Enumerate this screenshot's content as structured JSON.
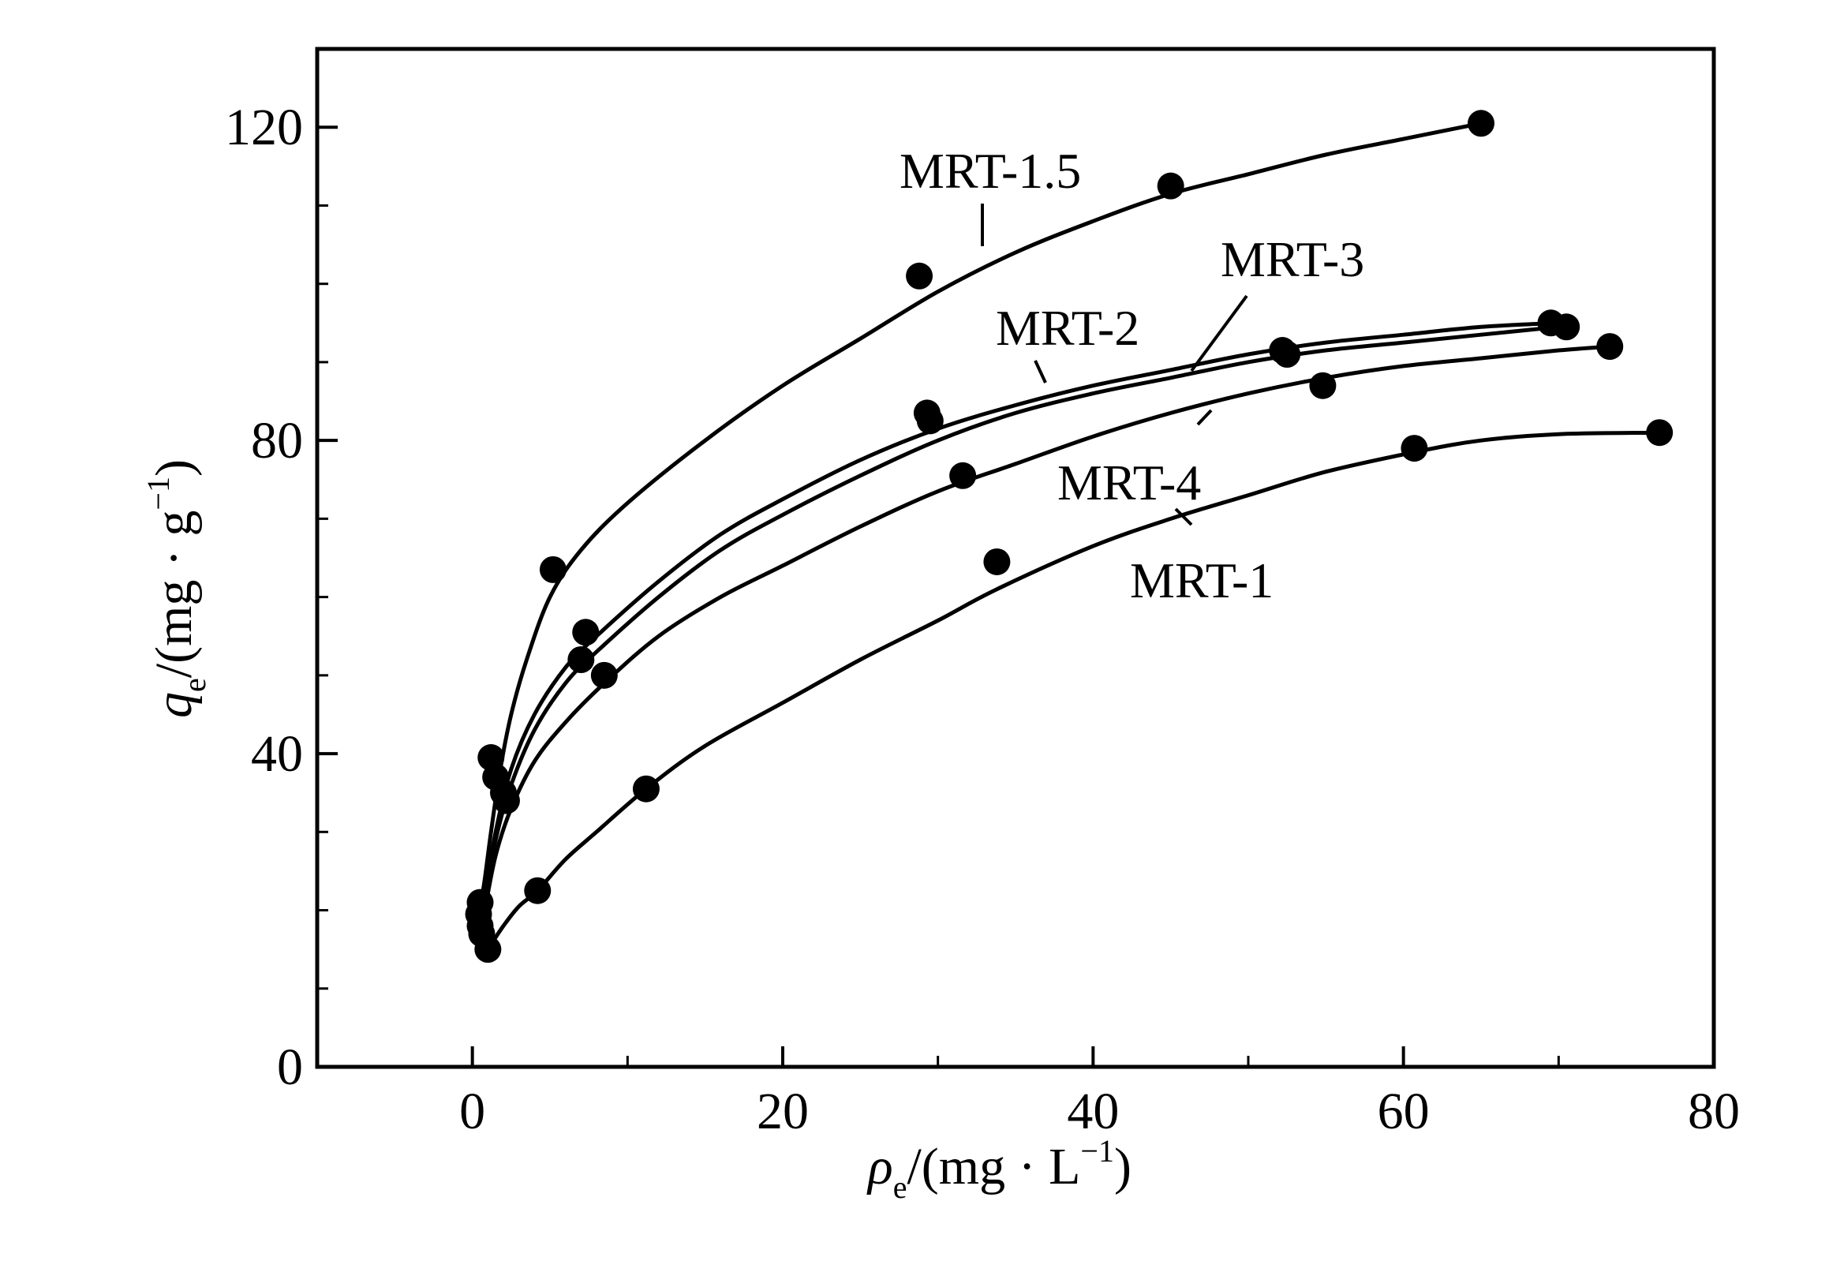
{
  "chart_data": {
    "type": "scatter",
    "xlabel": {
      "symbol": "ρ",
      "sub": "e",
      "unit_prefix": "/(mg · L",
      "unit_sup": "−1",
      "unit_suffix": ")"
    },
    "ylabel": {
      "symbol": "q",
      "sub": "e",
      "unit_prefix": "/(mg · g",
      "unit_sup": "−1",
      "unit_suffix": ")"
    },
    "xlim": [
      -10,
      80
    ],
    "ylim": [
      0,
      130
    ],
    "x_ticks": [
      0,
      20,
      40,
      60,
      80
    ],
    "x_tick_labels": [
      "0",
      "20",
      "40",
      "60",
      "80"
    ],
    "x_minor_ticks": [
      10,
      30,
      50,
      70
    ],
    "y_ticks": [
      0,
      40,
      80,
      120
    ],
    "y_tick_labels": [
      "0",
      "40",
      "80",
      "120"
    ],
    "y_minor_ticks": [
      10,
      20,
      30,
      50,
      60,
      70,
      90,
      100,
      110
    ],
    "grid": false,
    "series": [
      {
        "name": "MRT-1.5",
        "points": [
          [
            0.5,
            21
          ],
          [
            1.2,
            39.5
          ],
          [
            5.2,
            63.5
          ],
          [
            28.8,
            101
          ],
          [
            45,
            112.5
          ],
          [
            65,
            120.5
          ]
        ],
        "curve": [
          [
            0.4,
            19
          ],
          [
            0.8,
            24
          ],
          [
            1.2,
            30
          ],
          [
            1.8,
            38
          ],
          [
            2.5,
            45
          ],
          [
            3.5,
            52
          ],
          [
            5,
            60
          ],
          [
            7,
            66
          ],
          [
            10,
            72
          ],
          [
            15,
            80
          ],
          [
            20,
            87
          ],
          [
            25,
            93
          ],
          [
            30,
            99
          ],
          [
            35,
            104
          ],
          [
            40,
            108
          ],
          [
            45,
            111.5
          ],
          [
            50,
            114
          ],
          [
            55,
            116.5
          ],
          [
            60,
            118.5
          ],
          [
            65,
            120.5
          ]
        ]
      },
      {
        "name": "MRT-2",
        "points": [
          [
            0.4,
            19.5
          ],
          [
            1.5,
            37
          ],
          [
            7.3,
            55.5
          ],
          [
            29.3,
            83.5
          ],
          [
            52.2,
            91.5
          ],
          [
            69.5,
            95
          ]
        ],
        "curve": [
          [
            0.3,
            17
          ],
          [
            0.8,
            22
          ],
          [
            1.5,
            30
          ],
          [
            2.5,
            38
          ],
          [
            4,
            45
          ],
          [
            6,
            51
          ],
          [
            8,
            55
          ],
          [
            12,
            62
          ],
          [
            16,
            68
          ],
          [
            20,
            72.5
          ],
          [
            25,
            77.5
          ],
          [
            30,
            81.5
          ],
          [
            35,
            84.5
          ],
          [
            40,
            87
          ],
          [
            45,
            89
          ],
          [
            50,
            91
          ],
          [
            55,
            92.5
          ],
          [
            60,
            93.5
          ],
          [
            65,
            94.5
          ],
          [
            70,
            95
          ]
        ]
      },
      {
        "name": "MRT-3",
        "points": [
          [
            0.5,
            18
          ],
          [
            2,
            35
          ],
          [
            7,
            52
          ],
          [
            29.5,
            82.5
          ],
          [
            52.5,
            91
          ],
          [
            70.5,
            94.5
          ]
        ],
        "curve": [
          [
            0.3,
            16
          ],
          [
            0.8,
            21
          ],
          [
            1.5,
            29
          ],
          [
            2.5,
            36
          ],
          [
            4,
            43
          ],
          [
            6,
            49
          ],
          [
            8,
            53
          ],
          [
            12,
            60
          ],
          [
            16,
            66
          ],
          [
            20,
            70.5
          ],
          [
            25,
            75.5
          ],
          [
            30,
            80
          ],
          [
            35,
            83.5
          ],
          [
            40,
            86
          ],
          [
            45,
            88
          ],
          [
            50,
            90
          ],
          [
            55,
            91.5
          ],
          [
            60,
            92.5
          ],
          [
            65,
            93.5
          ],
          [
            70,
            94.5
          ]
        ]
      },
      {
        "name": "MRT-4",
        "points": [
          [
            0.6,
            17
          ],
          [
            2.2,
            34
          ],
          [
            8.5,
            50
          ],
          [
            31.6,
            75.5
          ],
          [
            54.8,
            87
          ],
          [
            73.3,
            92
          ]
        ],
        "curve": [
          [
            0.3,
            15
          ],
          [
            0.8,
            20
          ],
          [
            1.5,
            27
          ],
          [
            2.5,
            33
          ],
          [
            4,
            39
          ],
          [
            6,
            44
          ],
          [
            8.5,
            49
          ],
          [
            12,
            55
          ],
          [
            16,
            60
          ],
          [
            20,
            64
          ],
          [
            25,
            69
          ],
          [
            30,
            73.5
          ],
          [
            35,
            77
          ],
          [
            40,
            80.5
          ],
          [
            45,
            83.5
          ],
          [
            50,
            86
          ],
          [
            55,
            88
          ],
          [
            60,
            89.5
          ],
          [
            65,
            90.5
          ],
          [
            70,
            91.5
          ],
          [
            73.3,
            92
          ]
        ]
      },
      {
        "name": "MRT-1",
        "points": [
          [
            1,
            15
          ],
          [
            4.2,
            22.5
          ],
          [
            11.2,
            35.5
          ],
          [
            33.8,
            64.5
          ],
          [
            60.7,
            79
          ],
          [
            76.5,
            81
          ]
        ],
        "curve": [
          [
            1,
            15
          ],
          [
            2,
            18
          ],
          [
            3,
            20.5
          ],
          [
            4.2,
            22.5
          ],
          [
            6,
            26.5
          ],
          [
            8,
            30
          ],
          [
            11.2,
            35.5
          ],
          [
            15,
            41
          ],
          [
            20,
            46.5
          ],
          [
            25,
            52
          ],
          [
            30,
            57
          ],
          [
            33.8,
            61
          ],
          [
            40,
            66.5
          ],
          [
            45,
            70
          ],
          [
            50,
            73
          ],
          [
            55,
            76
          ],
          [
            60.7,
            78.5
          ],
          [
            65,
            80
          ],
          [
            70,
            80.8
          ],
          [
            76.5,
            81
          ]
        ]
      }
    ]
  },
  "series_labels": [
    {
      "text": "MRT-1.5"
    },
    {
      "text": "MRT-2"
    },
    {
      "text": "MRT-3"
    },
    {
      "text": "MRT-4"
    },
    {
      "text": "MRT-1"
    }
  ]
}
